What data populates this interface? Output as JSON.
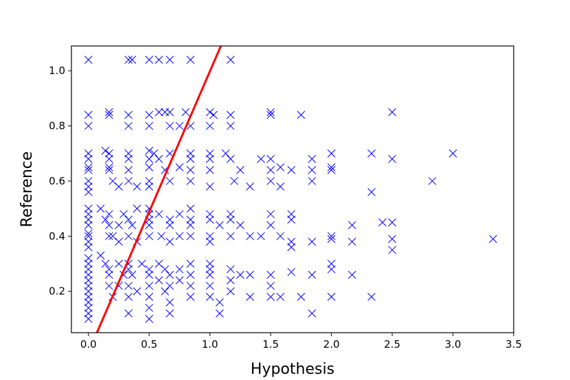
{
  "chart_data": {
    "type": "scatter",
    "title": "",
    "xlabel": "Hypothesis",
    "ylabel": "Reference",
    "xlim": [
      -0.14,
      3.5
    ],
    "ylim": [
      0.05,
      1.09
    ],
    "xticks": [
      "0.0",
      "0.5",
      "1.0",
      "1.5",
      "2.0",
      "2.5",
      "3.0",
      "3.5"
    ],
    "yticks": [
      "0.2",
      "0.4",
      "0.6",
      "0.8",
      "1.0"
    ],
    "grid": false,
    "legend": "none",
    "marker": "x",
    "colors": {
      "points": "#0000ff",
      "fit_line": "#ff0000"
    },
    "fit_line": {
      "x": [
        0.07,
        1.09
      ],
      "y": [
        0.05,
        1.09
      ]
    },
    "series": [
      {
        "points": [
          [
            0.0,
            1.04
          ],
          [
            0.33,
            1.04
          ],
          [
            0.36,
            1.04
          ],
          [
            0.5,
            1.04
          ],
          [
            0.58,
            1.04
          ],
          [
            0.67,
            1.04
          ],
          [
            0.84,
            1.04
          ],
          [
            1.17,
            1.04
          ],
          [
            0.0,
            0.84
          ],
          [
            0.0,
            0.8
          ],
          [
            0.17,
            0.85
          ],
          [
            0.17,
            0.84
          ],
          [
            0.33,
            0.84
          ],
          [
            0.33,
            0.8
          ],
          [
            0.5,
            0.84
          ],
          [
            0.5,
            0.8
          ],
          [
            0.58,
            0.85
          ],
          [
            0.63,
            0.85
          ],
          [
            0.67,
            0.85
          ],
          [
            0.67,
            0.8
          ],
          [
            0.75,
            0.8
          ],
          [
            0.8,
            0.85
          ],
          [
            0.84,
            0.8
          ],
          [
            1.0,
            0.85
          ],
          [
            1.03,
            0.84
          ],
          [
            1.0,
            0.8
          ],
          [
            1.17,
            0.84
          ],
          [
            1.17,
            0.8
          ],
          [
            1.5,
            0.85
          ],
          [
            1.5,
            0.84
          ],
          [
            1.75,
            0.84
          ],
          [
            2.5,
            0.85
          ],
          [
            0.0,
            0.7
          ],
          [
            0.0,
            0.68
          ],
          [
            0.0,
            0.65
          ],
          [
            0.0,
            0.64
          ],
          [
            0.0,
            0.6
          ],
          [
            0.0,
            0.58
          ],
          [
            0.0,
            0.56
          ],
          [
            0.14,
            0.71
          ],
          [
            0.17,
            0.7
          ],
          [
            0.17,
            0.68
          ],
          [
            0.17,
            0.65
          ],
          [
            0.17,
            0.64
          ],
          [
            0.2,
            0.6
          ],
          [
            0.25,
            0.58
          ],
          [
            0.33,
            0.7
          ],
          [
            0.33,
            0.68
          ],
          [
            0.33,
            0.64
          ],
          [
            0.33,
            0.6
          ],
          [
            0.4,
            0.58
          ],
          [
            0.5,
            0.71
          ],
          [
            0.5,
            0.68
          ],
          [
            0.5,
            0.65
          ],
          [
            0.5,
            0.6
          ],
          [
            0.5,
            0.58
          ],
          [
            0.54,
            0.7
          ],
          [
            0.58,
            0.68
          ],
          [
            0.63,
            0.64
          ],
          [
            0.67,
            0.7
          ],
          [
            0.67,
            0.6
          ],
          [
            0.75,
            0.65
          ],
          [
            0.84,
            0.7
          ],
          [
            0.84,
            0.68
          ],
          [
            0.84,
            0.64
          ],
          [
            0.84,
            0.6
          ],
          [
            1.0,
            0.7
          ],
          [
            1.0,
            0.68
          ],
          [
            1.0,
            0.64
          ],
          [
            1.0,
            0.58
          ],
          [
            1.13,
            0.7
          ],
          [
            1.17,
            0.68
          ],
          [
            1.2,
            0.6
          ],
          [
            1.25,
            0.64
          ],
          [
            1.33,
            0.58
          ],
          [
            1.42,
            0.68
          ],
          [
            1.5,
            0.68
          ],
          [
            1.5,
            0.64
          ],
          [
            1.5,
            0.6
          ],
          [
            1.58,
            0.65
          ],
          [
            1.67,
            0.64
          ],
          [
            1.58,
            0.58
          ],
          [
            1.84,
            0.68
          ],
          [
            1.84,
            0.64
          ],
          [
            1.84,
            0.6
          ],
          [
            2.0,
            0.7
          ],
          [
            2.0,
            0.65
          ],
          [
            2.0,
            0.64
          ],
          [
            2.33,
            0.7
          ],
          [
            2.33,
            0.56
          ],
          [
            2.5,
            0.68
          ],
          [
            2.83,
            0.6
          ],
          [
            3.0,
            0.7
          ],
          [
            0.0,
            0.5
          ],
          [
            0.0,
            0.48
          ],
          [
            0.0,
            0.46
          ],
          [
            0.0,
            0.44
          ],
          [
            0.0,
            0.41
          ],
          [
            0.0,
            0.4
          ],
          [
            0.0,
            0.38
          ],
          [
            0.0,
            0.36
          ],
          [
            0.1,
            0.5
          ],
          [
            0.14,
            0.46
          ],
          [
            0.17,
            0.48
          ],
          [
            0.17,
            0.44
          ],
          [
            0.17,
            0.4
          ],
          [
            0.2,
            0.4
          ],
          [
            0.25,
            0.44
          ],
          [
            0.25,
            0.38
          ],
          [
            0.29,
            0.48
          ],
          [
            0.33,
            0.46
          ],
          [
            0.33,
            0.4
          ],
          [
            0.36,
            0.44
          ],
          [
            0.4,
            0.5
          ],
          [
            0.4,
            0.38
          ],
          [
            0.5,
            0.5
          ],
          [
            0.5,
            0.48
          ],
          [
            0.5,
            0.46
          ],
          [
            0.5,
            0.44
          ],
          [
            0.5,
            0.4
          ],
          [
            0.58,
            0.48
          ],
          [
            0.6,
            0.4
          ],
          [
            0.67,
            0.46
          ],
          [
            0.67,
            0.44
          ],
          [
            0.67,
            0.38
          ],
          [
            0.75,
            0.48
          ],
          [
            0.75,
            0.4
          ],
          [
            0.84,
            0.5
          ],
          [
            0.84,
            0.46
          ],
          [
            0.84,
            0.44
          ],
          [
            0.84,
            0.4
          ],
          [
            1.0,
            0.48
          ],
          [
            1.0,
            0.46
          ],
          [
            1.0,
            0.4
          ],
          [
            1.0,
            0.38
          ],
          [
            1.08,
            0.44
          ],
          [
            1.17,
            0.48
          ],
          [
            1.17,
            0.46
          ],
          [
            1.17,
            0.4
          ],
          [
            1.25,
            0.44
          ],
          [
            1.33,
            0.4
          ],
          [
            1.42,
            0.4
          ],
          [
            1.5,
            0.48
          ],
          [
            1.5,
            0.44
          ],
          [
            1.58,
            0.4
          ],
          [
            1.67,
            0.48
          ],
          [
            1.67,
            0.46
          ],
          [
            1.67,
            0.38
          ],
          [
            1.67,
            0.36
          ],
          [
            1.84,
            0.38
          ],
          [
            2.0,
            0.4
          ],
          [
            2.0,
            0.39
          ],
          [
            2.17,
            0.44
          ],
          [
            2.17,
            0.38
          ],
          [
            2.42,
            0.45
          ],
          [
            2.5,
            0.45
          ],
          [
            2.5,
            0.39
          ],
          [
            2.5,
            0.35
          ],
          [
            3.33,
            0.39
          ],
          [
            0.0,
            0.32
          ],
          [
            0.0,
            0.3
          ],
          [
            0.0,
            0.28
          ],
          [
            0.0,
            0.26
          ],
          [
            0.0,
            0.24
          ],
          [
            0.0,
            0.22
          ],
          [
            0.0,
            0.2
          ],
          [
            0.0,
            0.18
          ],
          [
            0.0,
            0.16
          ],
          [
            0.0,
            0.14
          ],
          [
            0.0,
            0.12
          ],
          [
            0.0,
            0.1
          ],
          [
            0.1,
            0.33
          ],
          [
            0.14,
            0.3
          ],
          [
            0.17,
            0.28
          ],
          [
            0.17,
            0.26
          ],
          [
            0.17,
            0.22
          ],
          [
            0.2,
            0.18
          ],
          [
            0.25,
            0.3
          ],
          [
            0.25,
            0.22
          ],
          [
            0.29,
            0.26
          ],
          [
            0.33,
            0.3
          ],
          [
            0.33,
            0.28
          ],
          [
            0.33,
            0.22
          ],
          [
            0.33,
            0.18
          ],
          [
            0.33,
            0.12
          ],
          [
            0.36,
            0.26
          ],
          [
            0.4,
            0.2
          ],
          [
            0.44,
            0.3
          ],
          [
            0.5,
            0.28
          ],
          [
            0.5,
            0.26
          ],
          [
            0.5,
            0.22
          ],
          [
            0.5,
            0.18
          ],
          [
            0.5,
            0.14
          ],
          [
            0.5,
            0.1
          ],
          [
            0.58,
            0.3
          ],
          [
            0.58,
            0.24
          ],
          [
            0.63,
            0.28
          ],
          [
            0.63,
            0.2
          ],
          [
            0.67,
            0.26
          ],
          [
            0.67,
            0.22
          ],
          [
            0.67,
            0.16
          ],
          [
            0.67,
            0.12
          ],
          [
            0.75,
            0.28
          ],
          [
            0.75,
            0.24
          ],
          [
            0.84,
            0.3
          ],
          [
            0.84,
            0.26
          ],
          [
            0.84,
            0.22
          ],
          [
            0.84,
            0.18
          ],
          [
            1.0,
            0.3
          ],
          [
            1.0,
            0.28
          ],
          [
            1.0,
            0.26
          ],
          [
            1.0,
            0.22
          ],
          [
            1.0,
            0.18
          ],
          [
            1.08,
            0.12
          ],
          [
            1.08,
            0.16
          ],
          [
            1.17,
            0.28
          ],
          [
            1.17,
            0.24
          ],
          [
            1.17,
            0.2
          ],
          [
            1.25,
            0.26
          ],
          [
            1.33,
            0.26
          ],
          [
            1.33,
            0.18
          ],
          [
            1.5,
            0.26
          ],
          [
            1.5,
            0.22
          ],
          [
            1.5,
            0.18
          ],
          [
            1.58,
            0.18
          ],
          [
            1.67,
            0.27
          ],
          [
            1.84,
            0.26
          ],
          [
            1.84,
            0.12
          ],
          [
            2.0,
            0.3
          ],
          [
            2.0,
            0.28
          ],
          [
            2.0,
            0.18
          ],
          [
            2.17,
            0.26
          ],
          [
            2.33,
            0.18
          ],
          [
            1.75,
            0.18
          ]
        ]
      }
    ]
  }
}
